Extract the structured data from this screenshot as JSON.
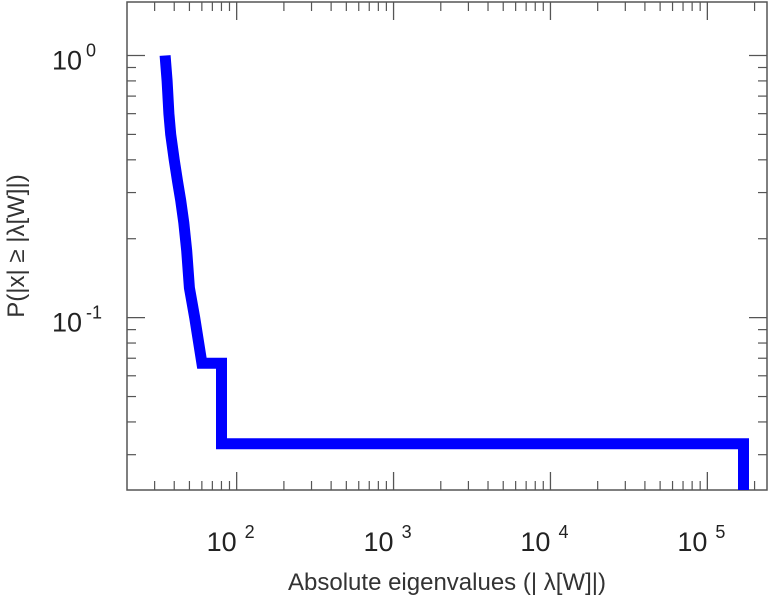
{
  "chart_data": {
    "type": "line",
    "subtype": "step (CCDF)",
    "title": "",
    "xlabel": "Absolute eigenvalues (|     λ[W]|)",
    "ylabel": "P(|x|  ≥ |λ[W]|)",
    "xscale": "log",
    "yscale": "log",
    "xlim": [
      20,
      240000
    ],
    "ylim": [
      0.022,
      1.6
    ],
    "x_ticks": [
      {
        "base": "10",
        "exp": "2",
        "value": 100
      },
      {
        "base": "10",
        "exp": "3",
        "value": 1000
      },
      {
        "base": "10",
        "exp": "4",
        "value": 10000
      },
      {
        "base": "10",
        "exp": "5",
        "value": 100000
      }
    ],
    "y_ticks": [
      {
        "base": "10",
        "exp": "0",
        "value": 1
      },
      {
        "base": "10",
        "exp": "-1",
        "value": 0.1
      }
    ],
    "grid": false,
    "legend": "none",
    "series": [
      {
        "color": "#0000ff",
        "x": [
          35,
          36,
          37,
          38,
          40,
          42,
          44,
          46,
          48,
          50,
          54,
          60,
          80,
          80,
          170000,
          170000
        ],
        "y": [
          1.0,
          0.8,
          0.6,
          0.5,
          0.4,
          0.33,
          0.28,
          0.23,
          0.18,
          0.13,
          0.1,
          0.067,
          0.067,
          0.033,
          0.033,
          0.022
        ]
      }
    ]
  }
}
